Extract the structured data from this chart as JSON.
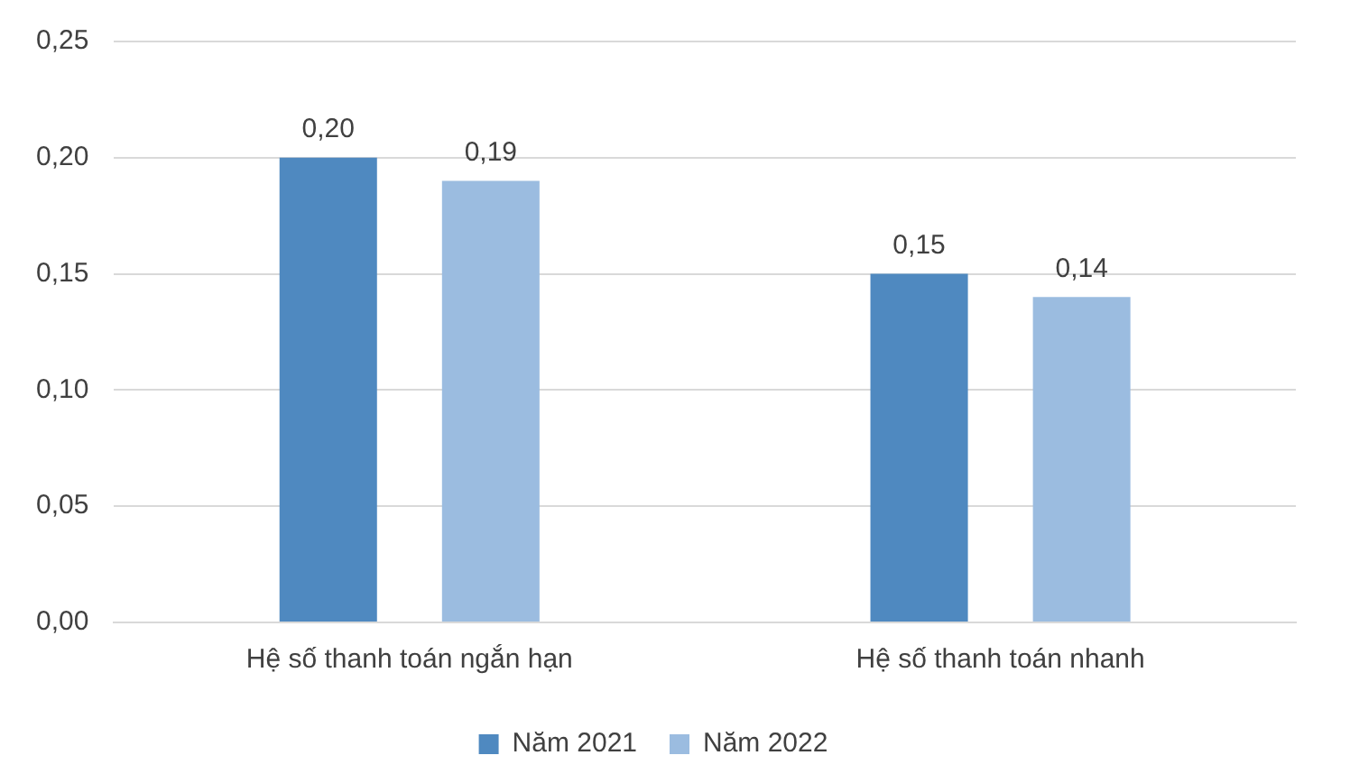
{
  "chart_data": {
    "type": "bar",
    "categories": [
      "Hệ số thanh toán ngắn hạn",
      "Hệ số thanh toán nhanh"
    ],
    "series": [
      {
        "name": "Năm 2021",
        "color": "#4f89c0",
        "values": [
          0.2,
          0.15
        ],
        "value_labels": [
          "0,20",
          "0,15"
        ]
      },
      {
        "name": "Năm 2022",
        "color": "#9bbce0",
        "values": [
          0.19,
          0.14
        ],
        "value_labels": [
          "0,19",
          "0,14"
        ]
      }
    ],
    "ylim": [
      0,
      0.25
    ],
    "yticks": [
      {
        "value": 0,
        "label": "0,00"
      },
      {
        "value": 0.05,
        "label": "0,05"
      },
      {
        "value": 0.1,
        "label": "0,10"
      },
      {
        "value": 0.15,
        "label": "0,15"
      },
      {
        "value": 0.2,
        "label": "0,20"
      },
      {
        "value": 0.25,
        "label": "0,25"
      }
    ],
    "grid": "y",
    "legend": "bottom"
  }
}
